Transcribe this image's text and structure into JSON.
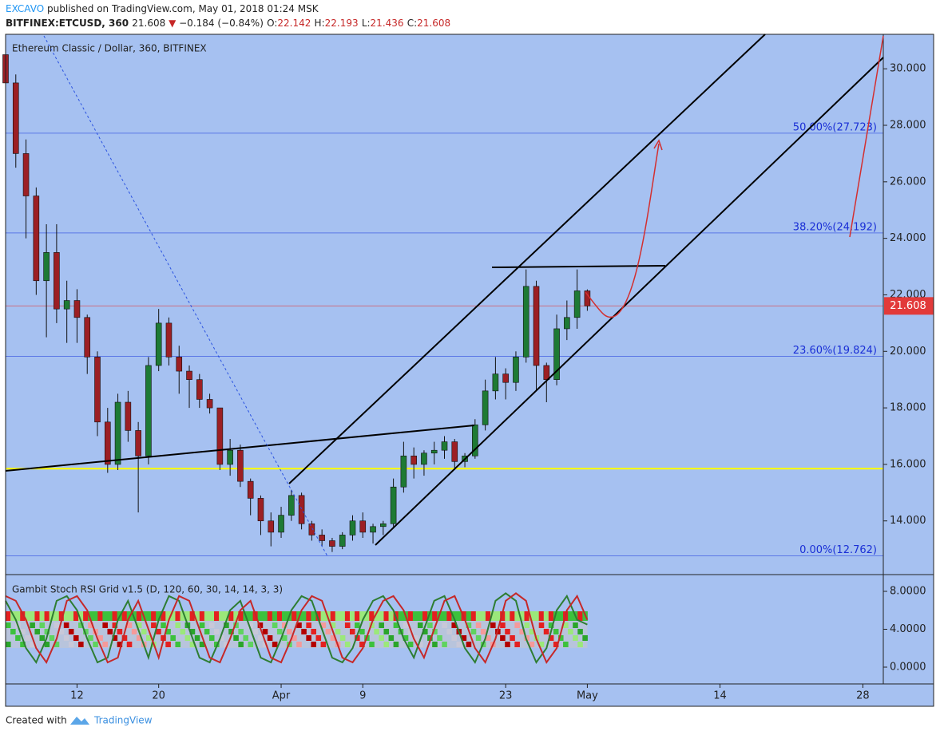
{
  "header": {
    "author": "EXCAVO",
    "published": "published on TradingView.com, May 01, 2018 01:24 MSK",
    "symbol": "BITFINEX:ETCUSD, 360",
    "change": "−0.184 (−0.84%)",
    "o_label": "O:",
    "h_label": "H:",
    "l_label": "L:",
    "c_label": "C:"
  },
  "footer": {
    "created": "Created with",
    "brand": "TradingView"
  },
  "chart_data": [
    {
      "type": "candlestick",
      "title": "Ethereum Classic / Dollar, 360, BITFINEX",
      "x": [
        "03-05",
        "03-06",
        "03-07",
        "03-08",
        "03-09",
        "03-10",
        "03-11",
        "03-12",
        "03-13",
        "03-14",
        "03-15",
        "03-16",
        "03-17",
        "03-18",
        "03-19",
        "03-20",
        "03-21",
        "03-22",
        "03-23",
        "03-24",
        "03-25",
        "03-26",
        "03-27",
        "03-28",
        "03-29",
        "03-30",
        "03-31",
        "04-01",
        "04-02",
        "04-03",
        "04-04",
        "04-05",
        "04-06",
        "04-07",
        "04-08",
        "04-09",
        "04-10",
        "04-11",
        "04-12",
        "04-13",
        "04-14",
        "04-15",
        "04-16",
        "04-17",
        "04-18",
        "04-19",
        "04-20",
        "04-21",
        "04-22",
        "04-23",
        "04-24",
        "04-25",
        "04-26",
        "04-27",
        "04-28",
        "04-29",
        "04-30",
        "05-01"
      ],
      "open": [
        30.5,
        29.5,
        27,
        25.5,
        22.5,
        23.5,
        21.5,
        21.8,
        21.2,
        19.8,
        17.5,
        16,
        18.2,
        17.2,
        16.3,
        19.5,
        21,
        19.8,
        19.3,
        19,
        18.3,
        18,
        16,
        16.5,
        15.4,
        14.8,
        14,
        13.6,
        14.2,
        14.9,
        13.9,
        13.5,
        13.3,
        13.1,
        13.5,
        14,
        13.6,
        13.8,
        13.9,
        15.2,
        16.3,
        16,
        16.4,
        16.5,
        16.8,
        16.1,
        16.3,
        17.4,
        18.6,
        19.2,
        18.9,
        19.8,
        22.3,
        19.5,
        19,
        20.8,
        21.2,
        22.142
      ],
      "high": [
        31,
        29.8,
        27.5,
        25.8,
        24.5,
        24.5,
        22.5,
        22.2,
        21.3,
        20,
        18,
        18.5,
        18.6,
        17.5,
        19.8,
        21.5,
        21.2,
        20.2,
        19.5,
        19.2,
        18.5,
        18,
        16.9,
        16.7,
        15.5,
        14.9,
        14.3,
        14.5,
        15.1,
        15,
        14,
        13.7,
        13.4,
        13.6,
        14.2,
        14.3,
        13.9,
        14,
        15.5,
        16.8,
        16.6,
        16.5,
        16.8,
        17,
        16.9,
        16.4,
        17.6,
        19,
        19.8,
        19.4,
        20,
        22.9,
        22.5,
        19.6,
        21.3,
        21.8,
        22.9,
        22.193
      ],
      "low": [
        29,
        26.5,
        24,
        22,
        20.5,
        21,
        20.3,
        20.3,
        19.2,
        17,
        15.7,
        15.8,
        16.8,
        14.3,
        16,
        19.3,
        19.5,
        18.5,
        18,
        18,
        17.8,
        15.8,
        15.6,
        15.2,
        14.2,
        13.5,
        13.1,
        13.4,
        14,
        13.7,
        13.3,
        13.1,
        12.9,
        13,
        13.3,
        13.4,
        13.2,
        13.5,
        13.8,
        15,
        15.5,
        15.6,
        16,
        16.2,
        15.8,
        15.9,
        16.2,
        17.2,
        18.3,
        18.3,
        18.6,
        19.6,
        18.6,
        18.2,
        18.8,
        20.4,
        20.8,
        21.436
      ],
      "close": [
        29.5,
        27,
        25.5,
        22.5,
        23.5,
        21.5,
        21.8,
        21.2,
        19.8,
        17.5,
        16,
        18.2,
        17.2,
        16.3,
        19.5,
        21,
        19.8,
        19.3,
        19,
        18.3,
        18,
        16,
        16.5,
        15.4,
        14.8,
        14,
        13.6,
        14.2,
        14.9,
        13.9,
        13.5,
        13.3,
        13.1,
        13.5,
        14,
        13.6,
        13.8,
        13.9,
        15.2,
        16.3,
        16,
        16.4,
        16.5,
        16.8,
        16.1,
        16.3,
        17.4,
        18.6,
        19.2,
        18.9,
        19.8,
        22.3,
        19.5,
        19,
        20.8,
        21.2,
        22.142,
        21.608
      ],
      "up_color": "#1e7a34",
      "down_color": "#9c1f24",
      "xlim": [
        "03-05",
        "05-30"
      ],
      "xticks": [
        {
          "value": "03-12",
          "label": "12"
        },
        {
          "value": "03-20",
          "label": "20"
        },
        {
          "value": "04-01",
          "label": "Apr"
        },
        {
          "value": "04-09",
          "label": "9"
        },
        {
          "value": "04-23",
          "label": "23"
        },
        {
          "value": "05-01",
          "label": "May"
        },
        {
          "value": "05-14",
          "label": "14"
        },
        {
          "value": "05-28",
          "label": "28"
        }
      ],
      "ylim": [
        12.1,
        31.22
      ],
      "yticks": [
        {
          "value": 14,
          "label": "14.000"
        },
        {
          "value": 16,
          "label": "16.000"
        },
        {
          "value": 18,
          "label": "18.000"
        },
        {
          "value": 20,
          "label": "20.000"
        },
        {
          "value": 22,
          "label": "22.000"
        },
        {
          "value": 24,
          "label": "24.000"
        },
        {
          "value": 26,
          "label": "26.000"
        },
        {
          "value": 28,
          "label": "28.000"
        },
        {
          "value": 30,
          "label": "30.000"
        }
      ],
      "fib_levels": [
        {
          "value": 27.723,
          "label": "50.00%(27.723)"
        },
        {
          "value": 24.192,
          "label": "38.20%(24.192)"
        },
        {
          "value": 19.824,
          "label": "23.60%(19.824)"
        },
        {
          "value": 12.762,
          "label": "0.00%(12.762)"
        }
      ],
      "fib_color": "#5b78e6",
      "support": {
        "value": 15.85,
        "color": "#ffff00"
      },
      "price_line_color": "#e23a3a"
    },
    {
      "type": "stoch",
      "title": "Gambit Stoch RSI Grid v1.5 (D, 120, 60, 30, 14, 14, 3, 3)",
      "series": [
        {
          "color": "#2e7d32",
          "values": [
            7,
            5,
            2,
            0.5,
            3,
            7,
            7.5,
            6,
            3,
            0.5,
            1,
            5,
            7,
            4,
            1,
            5,
            7.5,
            7,
            4,
            1,
            0.5,
            3,
            6,
            7,
            4,
            1,
            0.5,
            3,
            6,
            7.5,
            7,
            4,
            1,
            0.5,
            2,
            5,
            7,
            7.5,
            6,
            3,
            1,
            4,
            7,
            7.5,
            5,
            2,
            0.5,
            3,
            7,
            7.8,
            7,
            3,
            0.5,
            2,
            6,
            7.5,
            5,
            4.5
          ]
        },
        {
          "color": "#c62828",
          "values": [
            7.5,
            7,
            5,
            2,
            0.5,
            3,
            7,
            7.5,
            6,
            3,
            0.5,
            1,
            5,
            7,
            4,
            1,
            5,
            7.5,
            7,
            4,
            1,
            0.5,
            3,
            6,
            7,
            4,
            1,
            0.5,
            3,
            6,
            7.5,
            7,
            4,
            1,
            0.5,
            2,
            5,
            7,
            7.5,
            6,
            3,
            1,
            4,
            7,
            7.5,
            5,
            2,
            0.5,
            3,
            7,
            7.8,
            7,
            3,
            0.5,
            2,
            6,
            7.5,
            5
          ]
        }
      ],
      "ylim": [
        -1.77,
        9.6
      ],
      "yticks": [
        {
          "value": 0,
          "label": "0.0000"
        },
        {
          "value": 4,
          "label": "4.0000"
        },
        {
          "value": 8,
          "label": "8.0000"
        }
      ]
    }
  ]
}
